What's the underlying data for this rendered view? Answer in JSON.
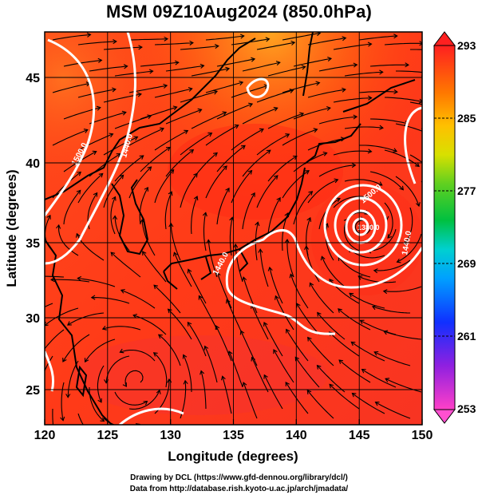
{
  "title": "MSM 09Z10Aug2024 (850.0hPa)",
  "x_axis": {
    "label": "Longitude (degrees)",
    "ticks": [
      120,
      125,
      130,
      135,
      140,
      145,
      150
    ],
    "range": [
      120,
      150
    ]
  },
  "y_axis": {
    "label": "Latitude  (degrees)",
    "ticks": [
      25,
      30,
      35,
      40,
      45
    ],
    "range": [
      22.4,
      47.6
    ]
  },
  "colorbar": {
    "labels": [
      "293",
      "285",
      "277",
      "269",
      "261",
      "253"
    ],
    "range": [
      253,
      293
    ],
    "colors": [
      "#e000c0",
      "#7000e0",
      "#1030ff",
      "#00a0ff",
      "#00c8c8",
      "#00c050",
      "#40d020",
      "#c0e000",
      "#ffc000",
      "#ff8000",
      "#ff3000",
      "#ff0000"
    ]
  },
  "contours": {
    "labels": [
      "1500.0",
      "1440.0",
      "1440.0",
      "1500.0",
      "1440.0",
      "1380.0"
    ]
  },
  "credits": {
    "line1": "Drawing by DCL (https://www.gfd-dennou.org/library/dcl/)",
    "line2": "Data from http://database.rish.kyoto-u.ac.jp/arch/jmadata/"
  }
}
